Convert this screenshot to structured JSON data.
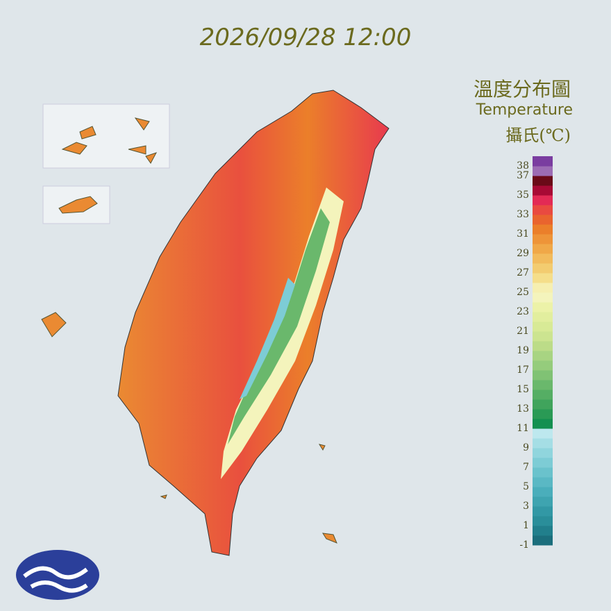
{
  "timestamp": "2026/09/28 12:00",
  "legend": {
    "title": "溫度分布圖",
    "subtitle": "Temperature",
    "unit": "攝氏(℃)",
    "ticks": [
      38,
      37,
      35,
      33,
      31,
      29,
      27,
      25,
      23,
      21,
      19,
      17,
      15,
      13,
      11,
      9,
      7,
      5,
      3,
      1,
      -1
    ],
    "range": [
      -1,
      39
    ],
    "colors": [
      "#1b6e7c",
      "#217f8c",
      "#2a8e9a",
      "#3298a5",
      "#3ea4b0",
      "#4aaebb",
      "#5ab8c4",
      "#6ac2cc",
      "#7dccd5",
      "#90d5dd",
      "#a5dee5",
      "#bde8ee",
      "#139050",
      "#2a9a55",
      "#40a45c",
      "#55ae64",
      "#6ab86c",
      "#80c274",
      "#95cc7c",
      "#a8d482",
      "#bcdc88",
      "#cce490",
      "#d8ea96",
      "#e2ee9e",
      "#ecf2a8",
      "#f4f4bc",
      "#f6efb0",
      "#f5de8a",
      "#f3cc70",
      "#f2bb5c",
      "#f0a848",
      "#ee9438",
      "#eb7f2a",
      "#e9642e",
      "#e94a40",
      "#e32a55",
      "#a80a35",
      "#6a0a18",
      "#9c6cb4",
      "#7a3da0"
    ]
  }
}
